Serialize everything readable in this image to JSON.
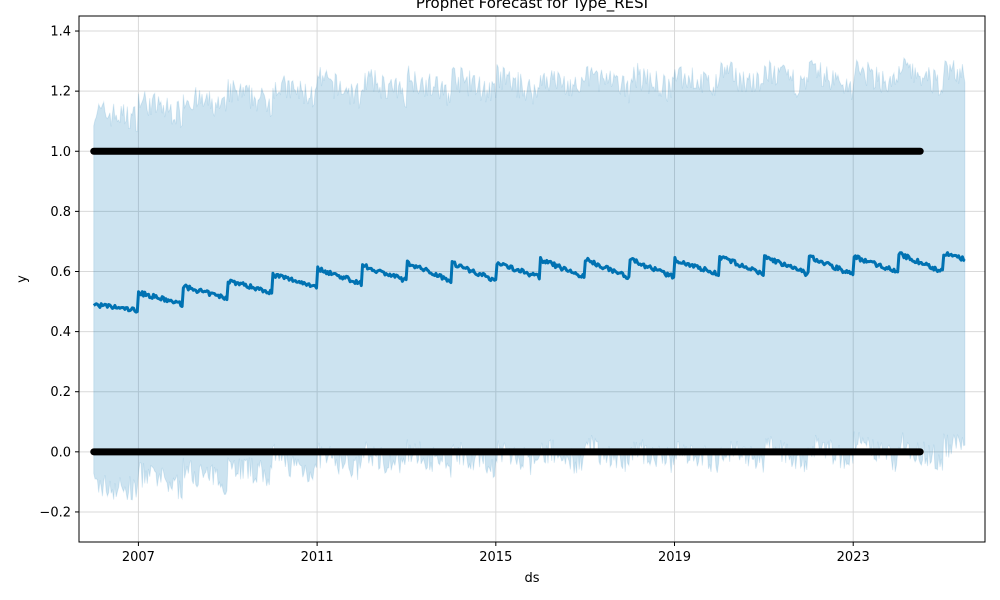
{
  "chart_data": {
    "type": "line",
    "title": "Prophet Forecast for Type_RESI",
    "xlabel": "ds",
    "ylabel": "y",
    "xlim": [
      2005.67,
      2025.95
    ],
    "ylim": [
      -0.3,
      1.45
    ],
    "x_ticks": [
      2007,
      2011,
      2015,
      2019,
      2023
    ],
    "y_ticks": [
      -0.2,
      0.0,
      0.2,
      0.4,
      0.6,
      0.8,
      1.0,
      1.2,
      1.4
    ],
    "y_tick_labels": [
      "−0.2",
      "0.0",
      "0.2",
      "0.4",
      "0.6",
      "0.8",
      "1.0",
      "1.2",
      "1.4"
    ],
    "grid": true,
    "series": [
      {
        "role": "forecast",
        "x": [
          2006.0,
          2007.0,
          2008.0,
          2009.0,
          2010.0,
          2011.0,
          2012.0,
          2013.0,
          2014.0,
          2015.0,
          2016.0,
          2017.0,
          2018.0,
          2019.0,
          2020.0,
          2021.0,
          2022.0,
          2023.0,
          2024.0,
          2025.0,
          2025.5
        ],
        "values": [
          0.46,
          0.5,
          0.52,
          0.54,
          0.56,
          0.58,
          0.59,
          0.6,
          0.6,
          0.6,
          0.61,
          0.61,
          0.61,
          0.61,
          0.62,
          0.62,
          0.62,
          0.62,
          0.63,
          0.63,
          0.64
        ],
        "color": "#0072B2"
      },
      {
        "role": "uncertainty_upper",
        "x": [
          2006.0,
          2007.0,
          2008.0,
          2009.0,
          2010.0,
          2011.0,
          2012.0,
          2013.0,
          2014.0,
          2015.0,
          2016.0,
          2017.0,
          2018.0,
          2019.0,
          2020.0,
          2021.0,
          2022.0,
          2023.0,
          2024.0,
          2025.0,
          2025.5
        ],
        "values": [
          1.1,
          1.14,
          1.15,
          1.17,
          1.19,
          1.21,
          1.21,
          1.22,
          1.22,
          1.22,
          1.22,
          1.23,
          1.23,
          1.23,
          1.24,
          1.24,
          1.24,
          1.24,
          1.25,
          1.25,
          1.26
        ],
        "color": "#0072B2"
      },
      {
        "role": "uncertainty_lower",
        "x": [
          2006.0,
          2007.0,
          2008.0,
          2009.0,
          2010.0,
          2011.0,
          2012.0,
          2013.0,
          2014.0,
          2015.0,
          2016.0,
          2017.0,
          2018.0,
          2019.0,
          2020.0,
          2021.0,
          2022.0,
          2023.0,
          2024.0,
          2025.0,
          2025.5
        ],
        "values": [
          -0.14,
          -0.1,
          -0.09,
          -0.07,
          -0.05,
          -0.04,
          -0.03,
          -0.02,
          -0.02,
          -0.02,
          -0.02,
          -0.01,
          -0.01,
          -0.01,
          -0.01,
          -0.01,
          0.0,
          0.0,
          0.0,
          0.0,
          0.01
        ],
        "color": "#0072B2"
      },
      {
        "role": "observed",
        "marker": "scatter",
        "x_range": [
          2006.0,
          2024.5
        ],
        "levels": [
          0.0,
          1.0
        ],
        "color": "#000000"
      }
    ]
  },
  "colors": {
    "forecast": "#0072B2",
    "band": "#0072B2",
    "observed": "#000000",
    "grid": "#d9d9d9"
  }
}
